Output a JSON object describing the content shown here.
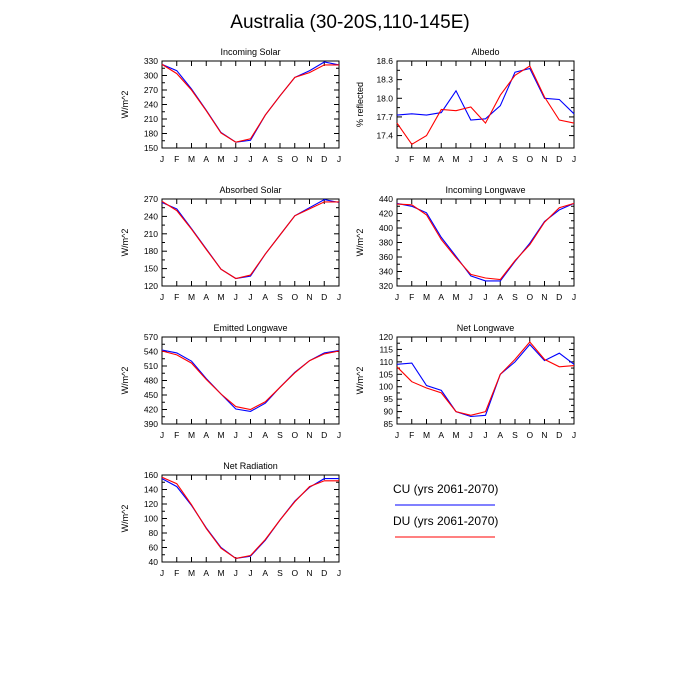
{
  "figure": {
    "title": "Australia (30-20S,110-145E)"
  },
  "legend": [
    {
      "label": "CU (yrs 2061-2070)",
      "color": "#0000ff"
    },
    {
      "label": "DU (yrs 2061-2070)",
      "color": "#ff0000"
    }
  ],
  "chart_data": [
    {
      "type": "line",
      "title": "Incoming Solar",
      "ylabel": "W/m^2",
      "xlabel": "",
      "x": [
        "J",
        "F",
        "M",
        "A",
        "M",
        "J",
        "J",
        "A",
        "S",
        "O",
        "N",
        "D",
        "J"
      ],
      "ylim": [
        150,
        330
      ],
      "yticks": [
        150,
        180,
        210,
        240,
        270,
        300,
        330
      ],
      "series": [
        {
          "name": "CU (yrs 2061-2070)",
          "color": "#0000ff",
          "values": [
            323,
            310,
            272,
            228,
            182,
            162,
            166,
            218,
            258,
            296,
            310,
            328,
            322
          ]
        },
        {
          "name": "DU (yrs 2061-2070)",
          "color": "#ff0000",
          "values": [
            323,
            304,
            270,
            227,
            181,
            162,
            169,
            218,
            258,
            296,
            306,
            322,
            322
          ]
        }
      ]
    },
    {
      "type": "line",
      "title": "Albedo",
      "ylabel": "% reflected",
      "xlabel": "",
      "x": [
        "J",
        "F",
        "M",
        "A",
        "M",
        "J",
        "J",
        "A",
        "S",
        "O",
        "N",
        "D",
        "J"
      ],
      "ylim": [
        17.2,
        18.6
      ],
      "yticks": [
        17.4,
        17.7,
        18.0,
        18.3,
        18.6
      ],
      "series": [
        {
          "name": "CU (yrs 2061-2070)",
          "color": "#0000ff",
          "values": [
            17.73,
            17.75,
            17.73,
            17.77,
            18.12,
            17.65,
            17.67,
            17.88,
            18.42,
            18.48,
            18.0,
            17.98,
            17.75
          ]
        },
        {
          "name": "DU (yrs 2061-2070)",
          "color": "#ff0000",
          "values": [
            17.6,
            17.26,
            17.4,
            17.82,
            17.8,
            17.86,
            17.6,
            18.05,
            18.37,
            18.52,
            18.02,
            17.65,
            17.6
          ]
        }
      ]
    },
    {
      "type": "line",
      "title": "Absorbed Solar",
      "ylabel": "W/m^2",
      "xlabel": "",
      "x": [
        "J",
        "F",
        "M",
        "A",
        "M",
        "J",
        "J",
        "A",
        "S",
        "O",
        "N",
        "D",
        "J"
      ],
      "ylim": [
        120,
        270
      ],
      "yticks": [
        120,
        150,
        180,
        210,
        240,
        270
      ],
      "series": [
        {
          "name": "CU (yrs 2061-2070)",
          "color": "#0000ff",
          "values": [
            264,
            253,
            219,
            184,
            149,
            133,
            137,
            175,
            208,
            241,
            255,
            269,
            264
          ]
        },
        {
          "name": "DU (yrs 2061-2070)",
          "color": "#ff0000",
          "values": [
            266,
            250,
            218,
            183,
            149,
            133,
            139,
            175,
            208,
            241,
            253,
            265,
            265
          ]
        }
      ]
    },
    {
      "type": "line",
      "title": "Incoming Longwave",
      "ylabel": "W/m^2",
      "xlabel": "",
      "x": [
        "J",
        "F",
        "M",
        "A",
        "M",
        "J",
        "J",
        "A",
        "S",
        "O",
        "N",
        "D",
        "J"
      ],
      "ylim": [
        320,
        440
      ],
      "yticks": [
        320,
        340,
        360,
        380,
        400,
        420,
        440
      ],
      "series": [
        {
          "name": "CU (yrs 2061-2070)",
          "color": "#0000ff",
          "values": [
            434,
            430,
            421,
            387,
            361,
            334,
            327,
            327,
            354,
            379,
            409,
            425,
            434
          ]
        },
        {
          "name": "DU (yrs 2061-2070)",
          "color": "#ff0000",
          "values": [
            433,
            432,
            418,
            384,
            359,
            336,
            331,
            329,
            355,
            377,
            408,
            428,
            434
          ]
        }
      ]
    },
    {
      "type": "line",
      "title": "Emitted Longwave",
      "ylabel": "W/m^2",
      "xlabel": "",
      "x": [
        "J",
        "F",
        "M",
        "A",
        "M",
        "J",
        "J",
        "A",
        "S",
        "O",
        "N",
        "D",
        "J"
      ],
      "ylim": [
        390,
        570
      ],
      "yticks": [
        390,
        420,
        450,
        480,
        510,
        540,
        570
      ],
      "series": [
        {
          "name": "CU (yrs 2061-2070)",
          "color": "#0000ff",
          "values": [
            543,
            537,
            520,
            484,
            452,
            421,
            416,
            433,
            466,
            497,
            521,
            537,
            542
          ]
        },
        {
          "name": "DU (yrs 2061-2070)",
          "color": "#ff0000",
          "values": [
            541,
            533,
            516,
            482,
            452,
            426,
            420,
            436,
            466,
            496,
            521,
            535,
            541
          ]
        }
      ]
    },
    {
      "type": "line",
      "title": "Net Longwave",
      "ylabel": "W/m^2",
      "xlabel": "",
      "x": [
        "J",
        "F",
        "M",
        "A",
        "M",
        "J",
        "J",
        "A",
        "S",
        "O",
        "N",
        "D",
        "J"
      ],
      "ylim": [
        85,
        120
      ],
      "yticks": [
        85,
        90,
        95,
        100,
        105,
        110,
        115,
        120
      ],
      "series": [
        {
          "name": "CU (yrs 2061-2070)",
          "color": "#0000ff",
          "values": [
            109,
            109.5,
            100.5,
            98.5,
            90,
            88,
            88.5,
            105,
            110,
            117,
            110.5,
            113.5,
            109
          ]
        },
        {
          "name": "DU (yrs 2061-2070)",
          "color": "#ff0000",
          "values": [
            108,
            102,
            99.5,
            97.5,
            90,
            88.5,
            90,
            105,
            111,
            118,
            111,
            108,
            108.5
          ]
        }
      ]
    },
    {
      "type": "line",
      "title": "Net Radiation",
      "ylabel": "W/m^2",
      "xlabel": "",
      "x": [
        "J",
        "F",
        "M",
        "A",
        "M",
        "J",
        "J",
        "A",
        "S",
        "O",
        "N",
        "D",
        "J"
      ],
      "ylim": [
        40,
        160
      ],
      "yticks": [
        40,
        60,
        80,
        100,
        120,
        140,
        160
      ],
      "series": [
        {
          "name": "CU (yrs 2061-2070)",
          "color": "#0000ff",
          "values": [
            155,
            144,
            118,
            87,
            60,
            45,
            48,
            70,
            98,
            124,
            143,
            155,
            155
          ]
        },
        {
          "name": "DU (yrs 2061-2070)",
          "color": "#ff0000",
          "values": [
            157,
            148,
            119,
            86,
            59,
            45,
            49,
            71,
            98,
            123,
            144,
            152,
            152
          ]
        }
      ]
    }
  ]
}
